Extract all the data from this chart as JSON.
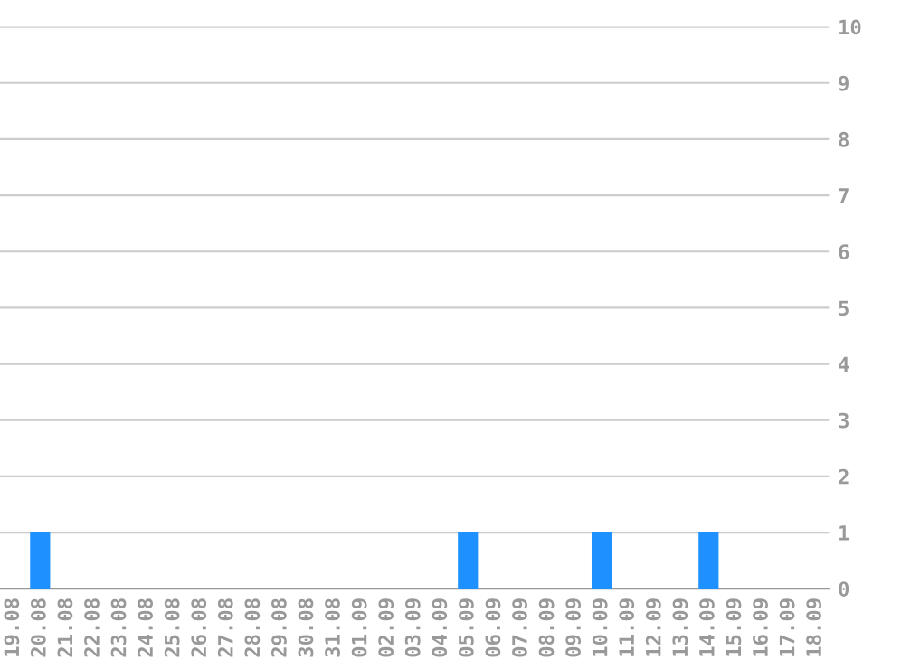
{
  "chart_data": {
    "type": "bar",
    "categories": [
      "19.08",
      "20.08",
      "21.08",
      "22.08",
      "23.08",
      "24.08",
      "25.08",
      "26.08",
      "27.08",
      "28.08",
      "29.08",
      "30.08",
      "31.08",
      "01.09",
      "02.09",
      "03.09",
      "04.09",
      "05.09",
      "06.09",
      "07.09",
      "08.09",
      "09.09",
      "10.09",
      "11.09",
      "12.09",
      "13.09",
      "14.09",
      "15.09",
      "16.09",
      "17.09",
      "18.09"
    ],
    "values": [
      0,
      1,
      0,
      0,
      0,
      0,
      0,
      0,
      0,
      0,
      0,
      0,
      0,
      0,
      0,
      0,
      0,
      1,
      0,
      0,
      0,
      0,
      1,
      0,
      0,
      0,
      1,
      0,
      0,
      0,
      0
    ],
    "color": "#1e90ff",
    "ylim": [
      0,
      10
    ],
    "yticks": [
      0,
      1,
      2,
      3,
      4,
      5,
      6,
      7,
      8,
      9,
      10
    ],
    "grid": "y"
  }
}
